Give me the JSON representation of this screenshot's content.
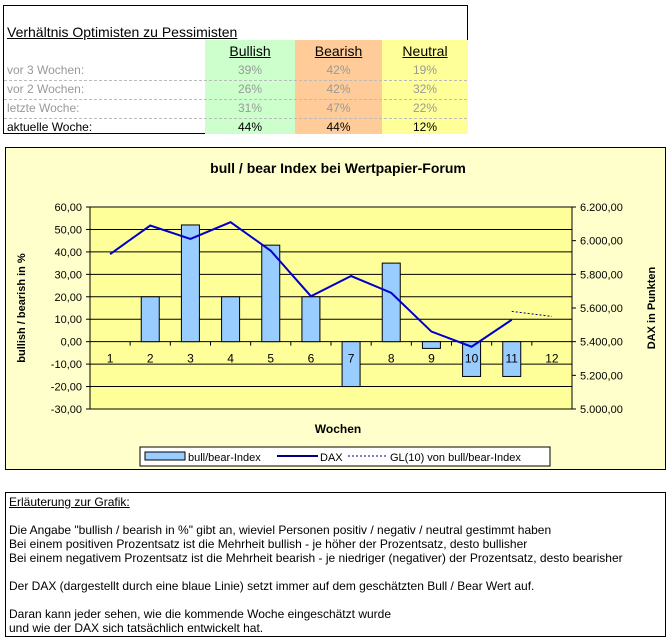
{
  "table": {
    "title": "Verhältnis Optimisten zu Pessimisten",
    "headers": [
      "Bullish",
      "Bearish",
      "Neutral"
    ],
    "rows": [
      {
        "label": "vor 3 Wochen:",
        "bullish": "39%",
        "bearish": "42%",
        "neutral": "19%"
      },
      {
        "label": "vor 2 Wochen:",
        "bullish": "26%",
        "bearish": "42%",
        "neutral": "32%"
      },
      {
        "label": "letzte Woche:",
        "bullish": "31%",
        "bearish": "47%",
        "neutral": "22%"
      },
      {
        "label": "aktuelle Woche:",
        "bullish": "44%",
        "bearish": "44%",
        "neutral": "12%"
      }
    ],
    "colors": {
      "bullish": "#ccffcc",
      "bearish": "#ffcc99",
      "neutral": "#ffff99"
    }
  },
  "chart_data": {
    "type": "bar+line",
    "title": "bull / bear Index bei Wertpapier-Forum",
    "xlabel": "Wochen",
    "ylabel": "bullish / bearish in %",
    "y2label": "DAX in Punkten",
    "categories": [
      "1",
      "2",
      "3",
      "4",
      "5",
      "6",
      "7",
      "8",
      "9",
      "10",
      "11",
      "12"
    ],
    "ylim": [
      -30,
      60
    ],
    "y2lim": [
      5000,
      6200
    ],
    "yticks": [
      "-30,00",
      "-20,00",
      "-10,00",
      "0,00",
      "10,00",
      "20,00",
      "30,00",
      "40,00",
      "50,00",
      "60,00"
    ],
    "y2ticks": [
      "5.000,00",
      "5.200,00",
      "5.400,00",
      "5.600,00",
      "5.800,00",
      "6.000,00",
      "6.200,00"
    ],
    "grid": true,
    "legend_position": "bottom",
    "series": [
      {
        "name": "bull/bear-Index",
        "type": "bar",
        "axis": "left",
        "color": "#99ccff",
        "values": [
          0,
          20,
          52,
          20,
          43,
          20,
          -20,
          35,
          -3,
          -15.5,
          -15.5,
          null
        ]
      },
      {
        "name": "DAX",
        "type": "line",
        "axis": "right",
        "color": "#0000cc",
        "values": [
          5920,
          6090,
          6010,
          6110,
          5940,
          5670,
          5790,
          5690,
          5460,
          5370,
          5530,
          null
        ]
      },
      {
        "name": "GL(10) von bull/bear-Index",
        "type": "line-dashed",
        "axis": "right",
        "color": "#000080",
        "values": [
          null,
          null,
          null,
          null,
          null,
          null,
          null,
          null,
          null,
          null,
          5580,
          5550
        ]
      }
    ]
  },
  "notes": {
    "heading": "Erläuterung zur Grafik:",
    "lines": [
      "Die Angabe \"bullish / bearish in %\" gibt an, wieviel Personen positiv / negativ / neutral gestimmt haben",
      "Bei einem positiven Prozentsatz ist die Mehrheit bullish - je höher der Prozentsatz, desto bullisher",
      "Bei einem negativem Prozentsatz ist die Mehrheit bearish - je niedriger (negativer) der Prozentsatz, desto bearisher",
      "Der DAX (dargestellt durch eine blaue Linie) setzt immer auf dem geschätzten Bull / Bear Wert auf.",
      "Daran kann jeder sehen, wie die kommende Woche eingeschätzt wurde",
      "und wie der DAX sich tatsächlich entwickelt hat."
    ]
  }
}
